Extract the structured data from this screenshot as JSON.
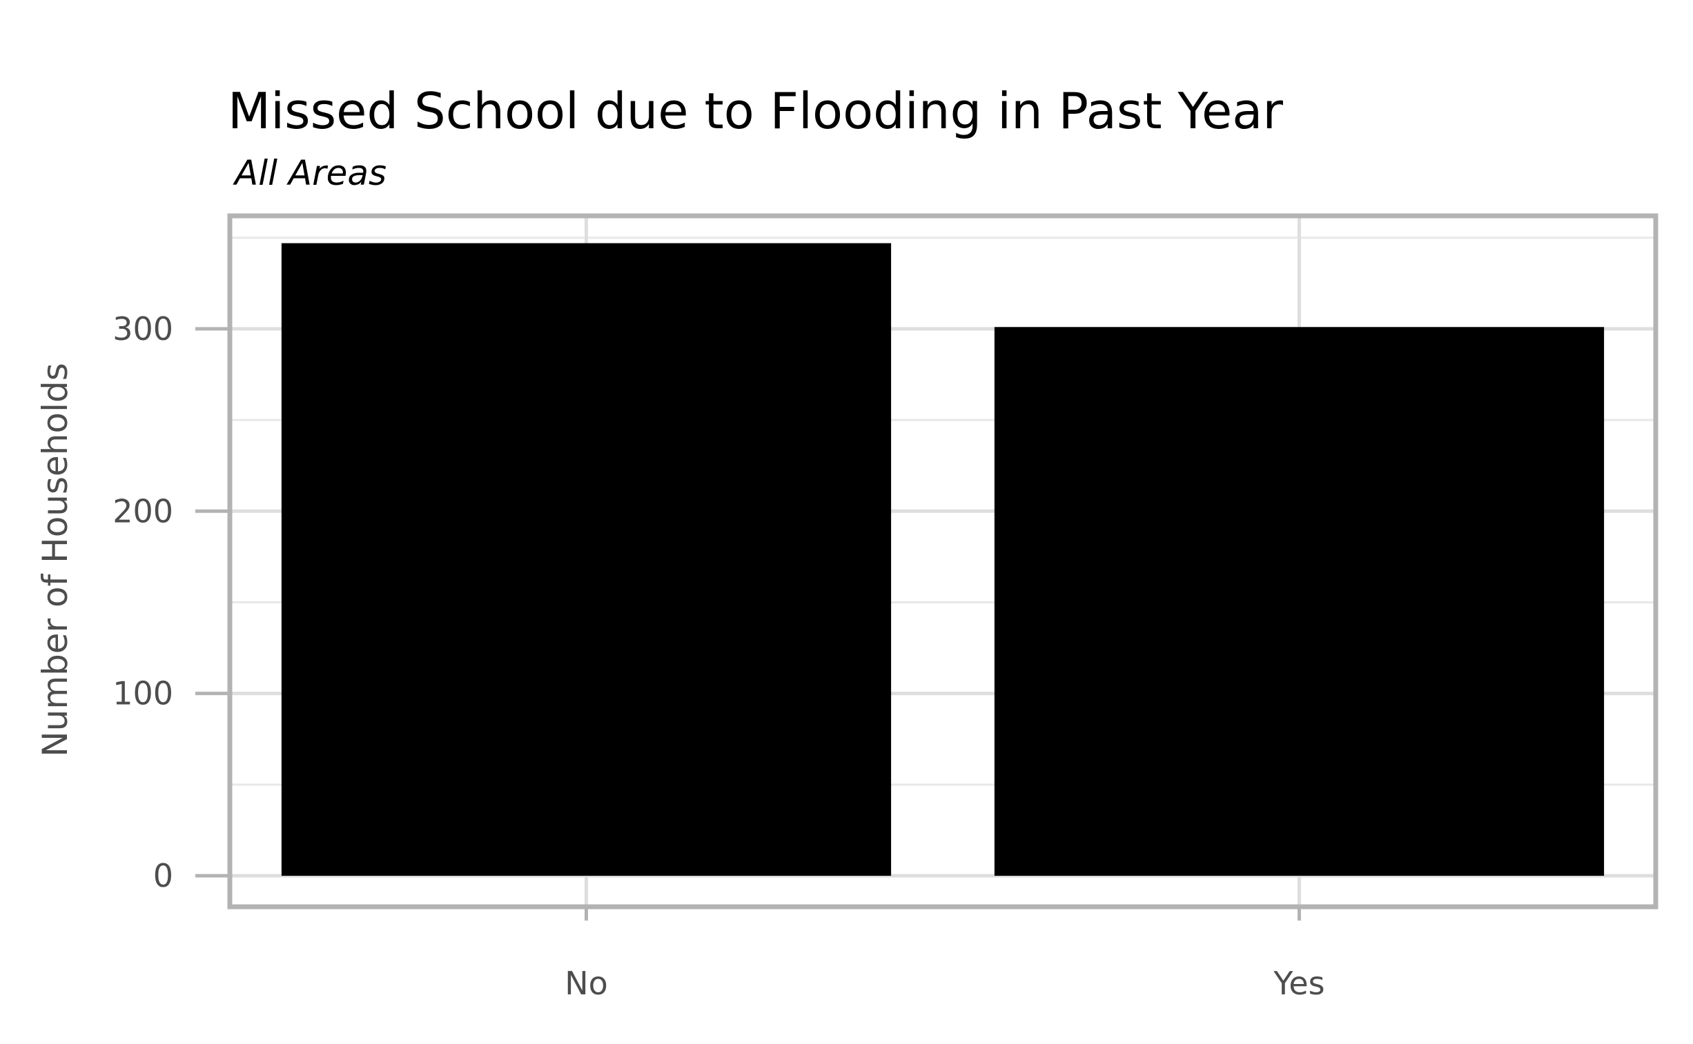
{
  "chart_data": {
    "type": "bar",
    "title": "Missed School due to Flooding in Past Year",
    "subtitle": "All Areas",
    "xlabel": "",
    "ylabel": "Number of Households",
    "categories": [
      "No",
      "Yes"
    ],
    "values": [
      347,
      301
    ],
    "ylim": [
      -17,
      362
    ],
    "yticks": [
      0,
      100,
      200,
      300
    ],
    "grid": true,
    "legend": "none",
    "colors": {
      "bar": "#000000",
      "panel_border": "#b3b3b3",
      "grid_major": "#dedede",
      "grid_minor": "#e8e8e8",
      "tick_text": "#4d4d4d",
      "title_text": "#000000"
    }
  }
}
